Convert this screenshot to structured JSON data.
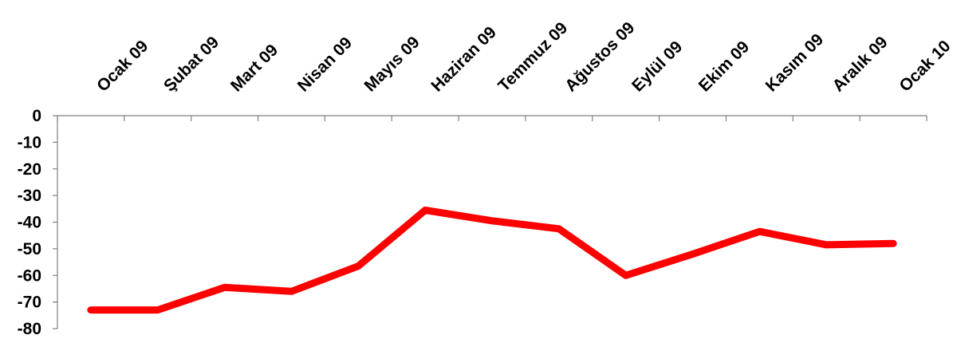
{
  "chart_data": {
    "type": "line",
    "title": "",
    "xlabel": "",
    "ylabel": "",
    "categories": [
      "Ocak 09",
      "Şubat 09",
      "Mart 09",
      "Nisan 09",
      "Mayıs 09",
      "Haziran 09",
      "Temmuz 09",
      "Ağustos 09",
      "Eylül 09",
      "Ekim 09",
      "Kasım 09",
      "Aralık 09",
      "Ocak 10"
    ],
    "x_axis_position": "top",
    "series": [
      {
        "values": [
          -73,
          -73,
          -64.5,
          -66,
          -56.5,
          -35.5,
          -39.5,
          -42.5,
          -60,
          -52,
          -43.5,
          -48.5,
          -48
        ],
        "color": "#ff0000"
      }
    ],
    "ylim": [
      -80,
      0
    ],
    "yticks": [
      0,
      -10,
      -20,
      -30,
      -40,
      -50,
      -60,
      -70,
      -80
    ],
    "grid": false,
    "legend": "none"
  }
}
